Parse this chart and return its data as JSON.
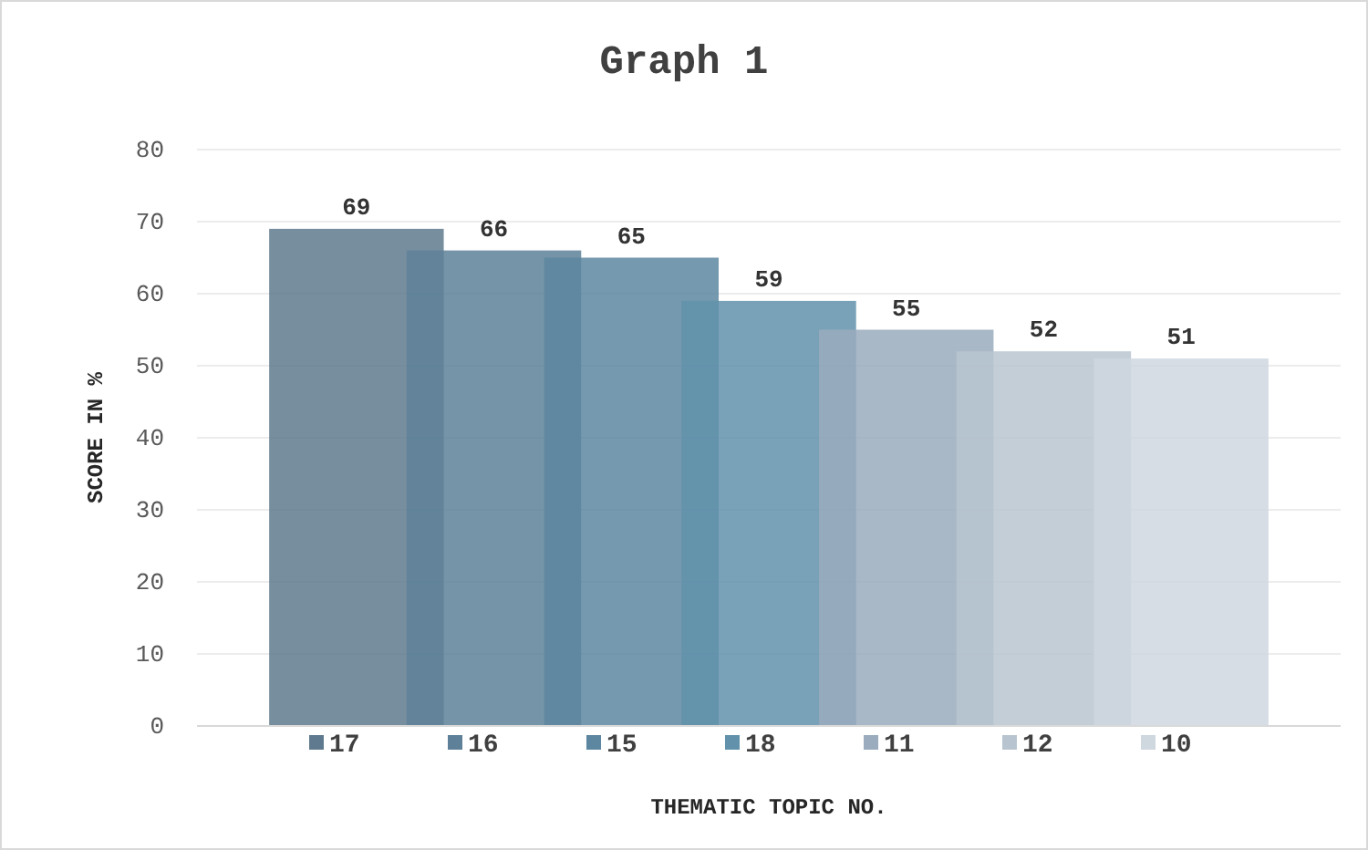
{
  "chart_data": {
    "type": "bar",
    "title": "Graph 1",
    "xlabel": "THEMATIC TOPIC NO.",
    "ylabel": "SCORE IN %",
    "categories": [
      null
    ],
    "series": [
      {
        "name": "17",
        "color": "#5f7a8e",
        "values": [
          69
        ]
      },
      {
        "name": "16",
        "color": "#5e8199",
        "values": [
          66
        ]
      },
      {
        "name": "15",
        "color": "#5d87a0",
        "values": [
          65
        ]
      },
      {
        "name": "18",
        "color": "#6292ab",
        "values": [
          59
        ]
      },
      {
        "name": "11",
        "color": "#9aacbd",
        "values": [
          55
        ]
      },
      {
        "name": "12",
        "color": "#b8c5d0",
        "values": [
          52
        ]
      },
      {
        "name": "10",
        "color": "#cfd7df",
        "values": [
          51
        ]
      }
    ],
    "ylim": [
      0,
      80
    ],
    "yticks": [
      0,
      10,
      20,
      30,
      40,
      50,
      60,
      70,
      80
    ],
    "grid": "y",
    "legend": "bottom",
    "data_labels": true
  }
}
